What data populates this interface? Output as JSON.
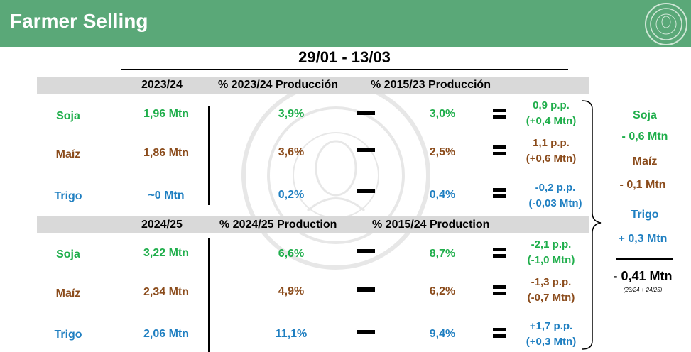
{
  "header": {
    "title": "Farmer Selling"
  },
  "period": "29/01 - 13/03",
  "sections": [
    {
      "header_year": "2023/24",
      "header_pct_current": "% 2023/24 Producción",
      "header_pct_avg": "% 2015/23 Producción",
      "rows": [
        {
          "crop": "Soja",
          "volume": "1,96 Mtn",
          "pct_current": "3,9%",
          "pct_avg": "3,0%",
          "delta_pp": "0,9 p.p.",
          "delta_mtn": "(+0,4 Mtn)",
          "color": "#1fae4b"
        },
        {
          "crop": "Maíz",
          "volume": "1,86 Mtn",
          "pct_current": "3,6%",
          "pct_avg": "2,5%",
          "delta_pp": "1,1 p.p.",
          "delta_mtn": "(+0,6 Mtn)",
          "color": "#8b4c1c"
        },
        {
          "crop": "Trigo",
          "volume": "~0 Mtn",
          "pct_current": "0,2%",
          "pct_avg": "0,4%",
          "delta_pp": "-0,2 p.p.",
          "delta_mtn": "(-0,03 Mtn)",
          "color": "#1f7fc1"
        }
      ]
    },
    {
      "header_year": "2024/25",
      "header_pct_current": "% 2024/25 Production",
      "header_pct_avg": "% 2015/24 Production",
      "rows": [
        {
          "crop": "Soja",
          "volume": "3,22 Mtn",
          "pct_current": "6,6%",
          "pct_avg": "8,7%",
          "delta_pp": "-2,1 p.p.",
          "delta_mtn": "(-1,0 Mtn)",
          "color": "#1fae4b"
        },
        {
          "crop": "Maíz",
          "volume": "2,34 Mtn",
          "pct_current": "4,9%",
          "pct_avg": "6,2%",
          "delta_pp": "-1,3 p.p.",
          "delta_mtn": "(-0,7 Mtn)",
          "color": "#8b4c1c"
        },
        {
          "crop": "Trigo",
          "volume": "2,06 Mtn",
          "pct_current": "11,1%",
          "pct_avg": "9,4%",
          "delta_pp": "+1,7 p.p.",
          "delta_mtn": "(+0,3 Mtn)",
          "color": "#1f7fc1"
        }
      ]
    }
  ],
  "summary": {
    "items": [
      {
        "crop": "Soja",
        "value": "- 0,6 Mtn",
        "color": "#1fae4b"
      },
      {
        "crop": "Maíz",
        "value": "- 0,1 Mtn",
        "color": "#8b4c1c"
      },
      {
        "crop": "Trigo",
        "value": "+ 0,3 Mtn",
        "color": "#1f7fc1"
      }
    ],
    "total": "- 0,41 Mtn",
    "total_note": "(23/24 + 24/25)"
  },
  "colors": {
    "header_bg": "#5aa878",
    "band_bg": "#d9d9d9"
  },
  "icons": {
    "logo": "bolsa-de-cereales-seal-icon",
    "watermark": "bolsa-de-cereales-seal-watermark"
  }
}
